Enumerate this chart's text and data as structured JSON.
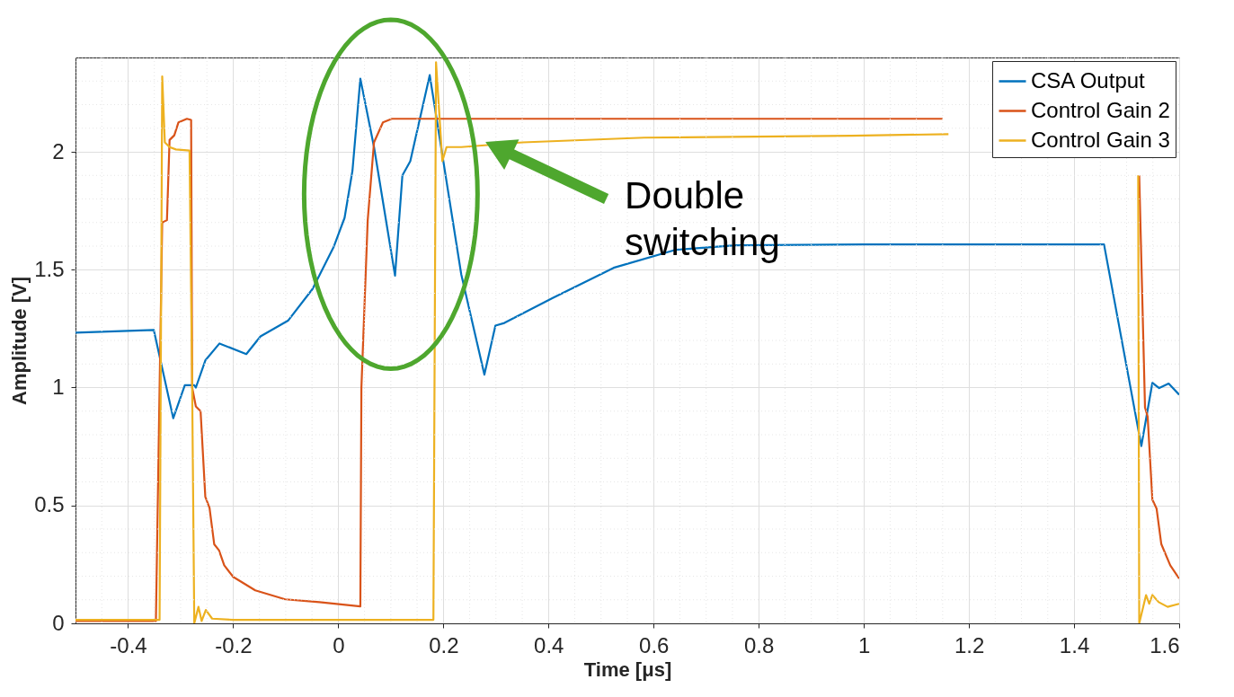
{
  "chart_data": {
    "type": "line",
    "xlabel": "Time [μs]",
    "ylabel": "Amplitude [V]",
    "xlim": [
      -0.5,
      1.6
    ],
    "ylim": [
      0,
      2.4
    ],
    "xticks": [
      -0.4,
      -0.2,
      0,
      0.2,
      0.4,
      0.6,
      0.8,
      1,
      1.2,
      1.4,
      1.6
    ],
    "yticks": [
      0,
      0.5,
      1,
      1.5,
      2
    ],
    "grid": true,
    "legend": "top right",
    "annotations": [
      "Double switching"
    ],
    "series": [
      {
        "name": "CSA Output",
        "color": "#0072bd",
        "x": [
          -0.5,
          -0.351,
          -0.314,
          -0.292,
          -0.274,
          -0.271,
          -0.253,
          -0.226,
          -0.175,
          -0.148,
          -0.095,
          -0.049,
          -0.009,
          0.012,
          0.027,
          0.042,
          0.068,
          0.108,
          0.122,
          0.137,
          0.174,
          0.234,
          0.278,
          0.299,
          0.316,
          0.408,
          0.524,
          0.641,
          0.755,
          1.0,
          1.2,
          1.457,
          1.528,
          1.549,
          1.562,
          1.58,
          1.6
        ],
        "values": [
          1.233,
          1.244,
          0.87,
          1.01,
          1.01,
          1.0,
          1.115,
          1.187,
          1.142,
          1.217,
          1.285,
          1.418,
          1.595,
          1.72,
          1.92,
          2.31,
          2.02,
          1.475,
          1.9,
          1.96,
          2.325,
          1.48,
          1.055,
          1.263,
          1.274,
          1.38,
          1.508,
          1.584,
          1.603,
          1.607,
          1.607,
          1.607,
          0.752,
          1.02,
          0.998,
          1.017,
          0.97
        ]
      },
      {
        "name": "Control Gain 2",
        "color": "#d95319",
        "x": [
          -0.5,
          -0.347,
          -0.335,
          -0.326,
          -0.321,
          -0.312,
          -0.304,
          -0.288,
          -0.28,
          -0.278,
          -0.271,
          -0.262,
          -0.253,
          -0.245,
          -0.236,
          -0.227,
          -0.217,
          -0.2,
          -0.158,
          -0.101,
          -0.036,
          0.042,
          0.044,
          0.056,
          0.068,
          0.085,
          0.102,
          0.5,
          1.0,
          1.15,
          1.3,
          1.524,
          1.535,
          1.54,
          1.549,
          1.557,
          1.566,
          1.583,
          1.6
        ],
        "values": [
          0.01,
          0.01,
          1.7,
          1.71,
          2.05,
          2.07,
          2.125,
          2.14,
          2.135,
          1.0,
          0.92,
          0.9,
          0.537,
          0.49,
          0.335,
          0.31,
          0.246,
          0.197,
          0.14,
          0.102,
          0.09,
          0.072,
          1.0,
          1.71,
          2.04,
          2.125,
          2.14,
          2.14,
          2.14,
          2.14,
          null,
          1.9,
          0.915,
          0.877,
          0.525,
          0.487,
          0.336,
          0.246,
          0.19
        ]
      },
      {
        "name": "Control Gain 3",
        "color": "#edb120",
        "x": [
          -0.5,
          -0.34,
          -0.335,
          -0.33,
          -0.321,
          -0.309,
          -0.283,
          -0.278,
          -0.274,
          -0.266,
          -0.26,
          -0.252,
          -0.24,
          -0.2,
          0.181,
          0.186,
          0.198,
          0.206,
          0.234,
          0.351,
          0.582,
          0.976,
          1.161,
          1.3,
          1.522,
          1.524,
          1.537,
          1.543,
          1.549,
          1.561,
          1.578,
          1.6
        ],
        "values": [
          0.015,
          0.015,
          2.32,
          2.04,
          2.02,
          2.01,
          2.005,
          1.0,
          0.0,
          0.07,
          0.01,
          0.057,
          0.02,
          0.015,
          0.015,
          2.38,
          1.96,
          2.02,
          2.02,
          2.04,
          2.06,
          2.068,
          2.075,
          null,
          1.9,
          0.0,
          0.12,
          0.083,
          0.12,
          0.09,
          0.07,
          0.083
        ]
      }
    ]
  }
}
